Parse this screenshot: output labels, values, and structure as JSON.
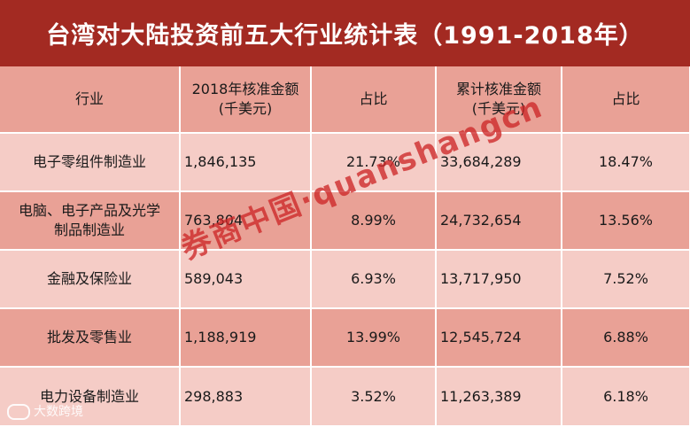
{
  "title": "台湾对大陆投资前五大行业统计表（1991-2018年）",
  "table": {
    "headers": [
      {
        "line1": "行业",
        "line2": ""
      },
      {
        "line1": "2018年核准金额",
        "line2": "(千美元)"
      },
      {
        "line1": "占比",
        "line2": ""
      },
      {
        "line1": "累计核准金额",
        "line2": "(千美元)"
      },
      {
        "line1": "占比",
        "line2": ""
      }
    ],
    "rows": [
      {
        "industry_line1": "电子零组件制造业",
        "industry_line2": "",
        "amount_2018": "1,846,135",
        "share_2018": "21.73%",
        "cumulative": "33,684,289",
        "share_cumulative": "18.47%"
      },
      {
        "industry_line1": "电脑、电子产品及光学",
        "industry_line2": "制品制造业",
        "amount_2018": "763,804",
        "share_2018": "8.99%",
        "cumulative": "24,732,654",
        "share_cumulative": "13.56%"
      },
      {
        "industry_line1": "金融及保险业",
        "industry_line2": "",
        "amount_2018": "589,043",
        "share_2018": "6.93%",
        "cumulative": "13,717,950",
        "share_cumulative": "7.52%"
      },
      {
        "industry_line1": "批发及零售业",
        "industry_line2": "",
        "amount_2018": "1,188,919",
        "share_2018": "13.99%",
        "cumulative": "12,545,724",
        "share_cumulative": "6.88%"
      },
      {
        "industry_line1": "电力设备制造业",
        "industry_line2": "",
        "amount_2018": "298,883",
        "share_2018": "3.52%",
        "cumulative": "11,263,389",
        "share_cumulative": "6.18%"
      }
    ]
  },
  "watermark": "券商中国·quanshangcn",
  "corner_logo": "大数跨境",
  "colors": {
    "title_bg": "#a32a22",
    "header_bg": "#e9a196",
    "row_light": "#f5ccc6",
    "row_dark": "#e9a196",
    "watermark": "#cd2828"
  }
}
